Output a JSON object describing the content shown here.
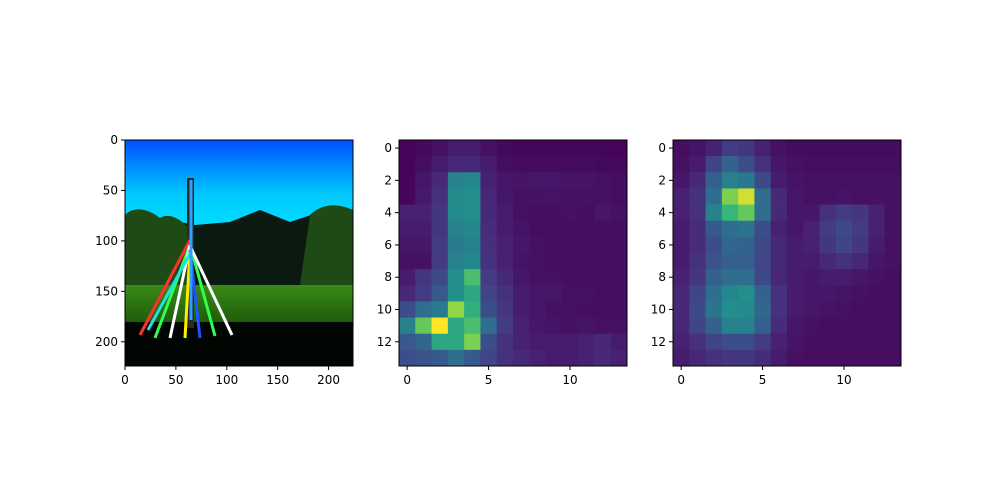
{
  "chart_data": [
    {
      "type": "image",
      "description": "photo",
      "xlim": [
        0,
        224
      ],
      "ylim": [
        224,
        0
      ],
      "xticks": [
        "0",
        "50",
        "100",
        "150",
        "200"
      ],
      "yticks": [
        "0",
        "50",
        "100",
        "150",
        "200"
      ],
      "xtick_values": [
        0,
        50,
        100,
        150,
        200
      ],
      "ytick_values": [
        0,
        50,
        100,
        150,
        200
      ]
    },
    {
      "type": "heatmap",
      "colormap": "viridis",
      "xlim": [
        -0.5,
        13.5
      ],
      "ylim": [
        13.5,
        -0.5
      ],
      "xticks": [
        "0",
        "5",
        "10"
      ],
      "yticks": [
        "0",
        "2",
        "4",
        "6",
        "8",
        "10",
        "12"
      ],
      "xtick_values": [
        0,
        5,
        10
      ],
      "ytick_values": [
        0,
        2,
        4,
        6,
        8,
        10,
        12
      ],
      "values": [
        [
          0.02,
          0.03,
          0.06,
          0.1,
          0.1,
          0.06,
          0.03,
          0.02,
          0.02,
          0.02,
          0.02,
          0.02,
          0.02,
          0.02
        ],
        [
          0.02,
          0.05,
          0.1,
          0.14,
          0.14,
          0.1,
          0.05,
          0.04,
          0.04,
          0.04,
          0.04,
          0.04,
          0.03,
          0.03
        ],
        [
          0.02,
          0.08,
          0.15,
          0.55,
          0.58,
          0.12,
          0.08,
          0.07,
          0.08,
          0.08,
          0.07,
          0.07,
          0.06,
          0.05
        ],
        [
          0.02,
          0.09,
          0.18,
          0.6,
          0.62,
          0.14,
          0.08,
          0.06,
          0.06,
          0.07,
          0.06,
          0.06,
          0.06,
          0.05
        ],
        [
          0.12,
          0.12,
          0.2,
          0.6,
          0.62,
          0.15,
          0.1,
          0.06,
          0.05,
          0.05,
          0.06,
          0.05,
          0.08,
          0.06
        ],
        [
          0.1,
          0.1,
          0.2,
          0.55,
          0.58,
          0.16,
          0.1,
          0.07,
          0.05,
          0.05,
          0.05,
          0.05,
          0.05,
          0.05
        ],
        [
          0.08,
          0.08,
          0.22,
          0.52,
          0.55,
          0.17,
          0.12,
          0.08,
          0.06,
          0.05,
          0.05,
          0.05,
          0.05,
          0.05
        ],
        [
          0.06,
          0.06,
          0.22,
          0.55,
          0.58,
          0.18,
          0.12,
          0.07,
          0.06,
          0.05,
          0.05,
          0.05,
          0.05,
          0.05
        ],
        [
          0.1,
          0.2,
          0.28,
          0.62,
          0.78,
          0.22,
          0.14,
          0.08,
          0.06,
          0.06,
          0.05,
          0.05,
          0.05,
          0.05
        ],
        [
          0.15,
          0.22,
          0.35,
          0.62,
          0.7,
          0.25,
          0.18,
          0.1,
          0.08,
          0.08,
          0.06,
          0.06,
          0.05,
          0.05
        ],
        [
          0.3,
          0.45,
          0.52,
          0.88,
          0.72,
          0.3,
          0.2,
          0.1,
          0.08,
          0.06,
          0.06,
          0.05,
          0.05,
          0.05
        ],
        [
          0.55,
          0.82,
          1.0,
          0.7,
          0.78,
          0.45,
          0.22,
          0.12,
          0.08,
          0.07,
          0.06,
          0.07,
          0.06,
          0.06
        ],
        [
          0.35,
          0.42,
          0.7,
          0.7,
          0.85,
          0.3,
          0.18,
          0.12,
          0.1,
          0.1,
          0.1,
          0.12,
          0.15,
          0.1
        ],
        [
          0.3,
          0.32,
          0.35,
          0.45,
          0.35,
          0.25,
          0.18,
          0.15,
          0.12,
          0.1,
          0.1,
          0.12,
          0.15,
          0.12
        ]
      ]
    },
    {
      "type": "heatmap",
      "colormap": "viridis",
      "xlim": [
        -0.5,
        13.5
      ],
      "ylim": [
        13.5,
        -0.5
      ],
      "xticks": [
        "0",
        "5",
        "10"
      ],
      "yticks": [
        "0",
        "2",
        "4",
        "6",
        "8",
        "10",
        "12"
      ],
      "xtick_values": [
        0,
        5,
        10
      ],
      "ytick_values": [
        0,
        2,
        4,
        6,
        8,
        10,
        12
      ],
      "values": [
        [
          0.05,
          0.07,
          0.12,
          0.22,
          0.2,
          0.12,
          0.06,
          0.04,
          0.04,
          0.04,
          0.04,
          0.04,
          0.04,
          0.04
        ],
        [
          0.06,
          0.1,
          0.25,
          0.4,
          0.3,
          0.18,
          0.08,
          0.06,
          0.05,
          0.05,
          0.05,
          0.05,
          0.05,
          0.05
        ],
        [
          0.08,
          0.15,
          0.38,
          0.55,
          0.5,
          0.28,
          0.1,
          0.07,
          0.06,
          0.06,
          0.06,
          0.06,
          0.06,
          0.06
        ],
        [
          0.12,
          0.18,
          0.45,
          0.85,
          0.95,
          0.45,
          0.15,
          0.08,
          0.06,
          0.06,
          0.07,
          0.06,
          0.06,
          0.06
        ],
        [
          0.12,
          0.18,
          0.55,
          0.75,
          0.82,
          0.45,
          0.15,
          0.08,
          0.08,
          0.18,
          0.22,
          0.2,
          0.12,
          0.06
        ],
        [
          0.1,
          0.16,
          0.35,
          0.45,
          0.48,
          0.3,
          0.12,
          0.08,
          0.12,
          0.22,
          0.28,
          0.22,
          0.12,
          0.06
        ],
        [
          0.1,
          0.16,
          0.3,
          0.42,
          0.4,
          0.28,
          0.14,
          0.1,
          0.12,
          0.2,
          0.25,
          0.2,
          0.1,
          0.06
        ],
        [
          0.1,
          0.18,
          0.32,
          0.38,
          0.38,
          0.26,
          0.14,
          0.1,
          0.1,
          0.15,
          0.18,
          0.14,
          0.08,
          0.06
        ],
        [
          0.12,
          0.2,
          0.4,
          0.45,
          0.45,
          0.28,
          0.14,
          0.1,
          0.08,
          0.1,
          0.1,
          0.08,
          0.06,
          0.05
        ],
        [
          0.14,
          0.25,
          0.45,
          0.58,
          0.62,
          0.4,
          0.18,
          0.1,
          0.08,
          0.08,
          0.07,
          0.06,
          0.05,
          0.05
        ],
        [
          0.15,
          0.28,
          0.48,
          0.62,
          0.6,
          0.42,
          0.18,
          0.1,
          0.08,
          0.07,
          0.06,
          0.05,
          0.05,
          0.05
        ],
        [
          0.14,
          0.25,
          0.4,
          0.55,
          0.55,
          0.38,
          0.16,
          0.08,
          0.06,
          0.05,
          0.05,
          0.05,
          0.05,
          0.05
        ],
        [
          0.12,
          0.18,
          0.25,
          0.3,
          0.3,
          0.22,
          0.12,
          0.07,
          0.05,
          0.05,
          0.05,
          0.05,
          0.05,
          0.05
        ],
        [
          0.1,
          0.14,
          0.18,
          0.2,
          0.2,
          0.16,
          0.1,
          0.06,
          0.05,
          0.05,
          0.05,
          0.05,
          0.05,
          0.05
        ]
      ]
    }
  ]
}
